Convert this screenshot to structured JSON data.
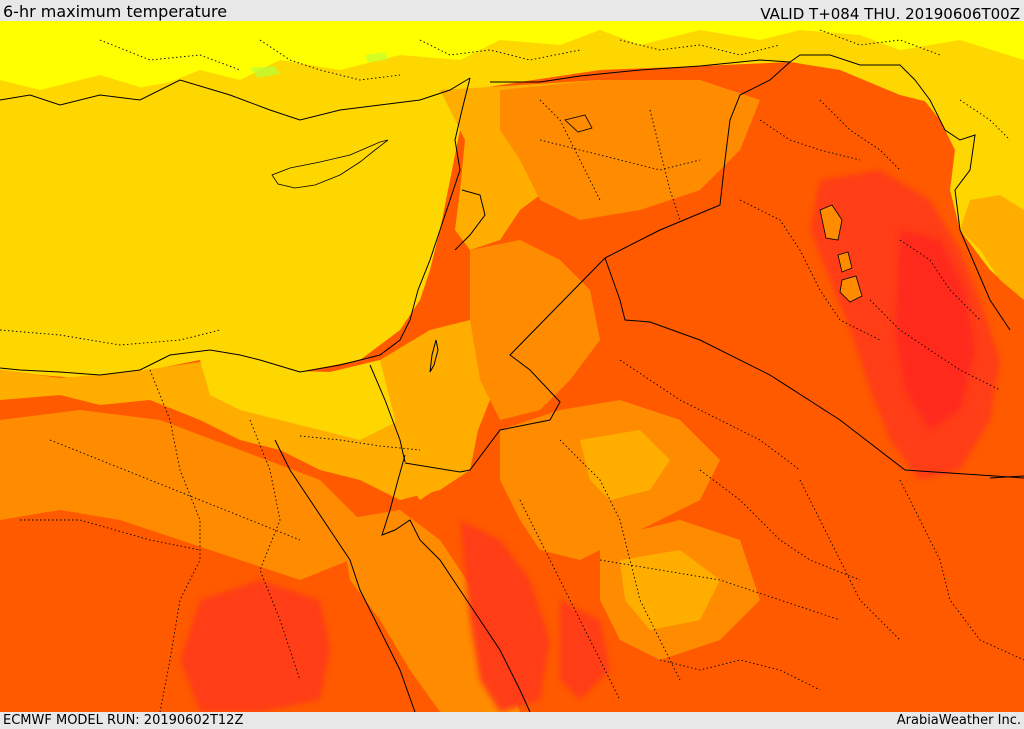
{
  "header": {
    "title": "6-hr maximum temperature",
    "valid_time": "VALID T+084 THU. 20190606T00Z"
  },
  "footer": {
    "model_run": "ECMWF MODEL RUN: 20190602T12Z",
    "credit": "ArabiaWeather Inc."
  },
  "colors": {
    "light_yellow": "#ffff00",
    "yellow": "#ffd700",
    "light_orange": "#ffae00",
    "orange": "#ff8c00",
    "dark_orange": "#ff5a00",
    "red_orange": "#ff3c14",
    "red": "#ff2a1a",
    "pale_green": "#b5ff3c",
    "border": "#000000"
  },
  "map": {
    "region": "Eastern Mediterranean and Middle East",
    "style": "filled temperature contours with country borders"
  }
}
